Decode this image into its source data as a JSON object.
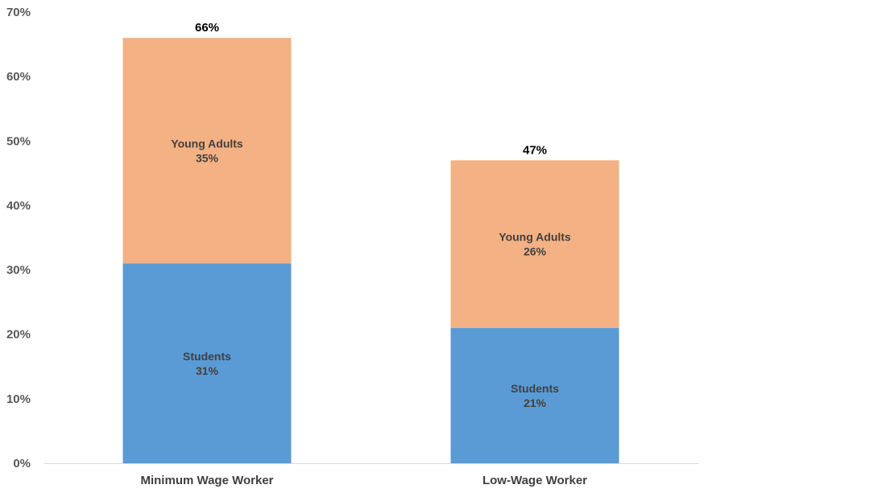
{
  "chart_data": {
    "type": "bar",
    "stacked": true,
    "title": "",
    "xlabel": "",
    "ylabel": "",
    "ylim": [
      0,
      70
    ],
    "yticks": [
      0,
      10,
      20,
      30,
      40,
      50,
      60,
      70
    ],
    "ytick_labels": [
      "0%",
      "10%",
      "20%",
      "30%",
      "40%",
      "50%",
      "60%",
      "70%"
    ],
    "categories": [
      "Minimum Wage Worker",
      "Low-Wage Worker"
    ],
    "series": [
      {
        "name": "Students",
        "values": [
          31,
          21
        ],
        "value_labels": [
          "31%",
          "21%"
        ],
        "color": "#5B9BD5"
      },
      {
        "name": "Young Adults",
        "values": [
          35,
          26
        ],
        "value_labels": [
          "35%",
          "26%"
        ],
        "color": "#F4B183"
      }
    ],
    "totals": [
      66,
      47
    ],
    "total_labels": [
      "66%",
      "47%"
    ],
    "grid": false,
    "legend": "none",
    "axis_color": "#D9D9D9"
  }
}
